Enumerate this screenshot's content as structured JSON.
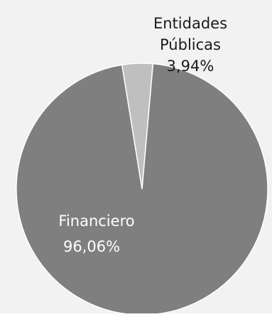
{
  "chart_data": {
    "type": "pie",
    "start_angle_deg": 5,
    "direction": "counterclockwise",
    "slices": [
      {
        "label_line1": "Entidades",
        "label_line2": "Públicas",
        "value": 3.94,
        "value_label": "3,94%",
        "color": "#bfbfbf"
      },
      {
        "label_line1": "Financiero",
        "label_line2": "",
        "value": 96.06,
        "value_label": "96,06%",
        "color": "#7f7f7f"
      }
    ],
    "background_color": "#f2f2f2",
    "slice_border_color": "#ffffff",
    "legend": "none"
  }
}
